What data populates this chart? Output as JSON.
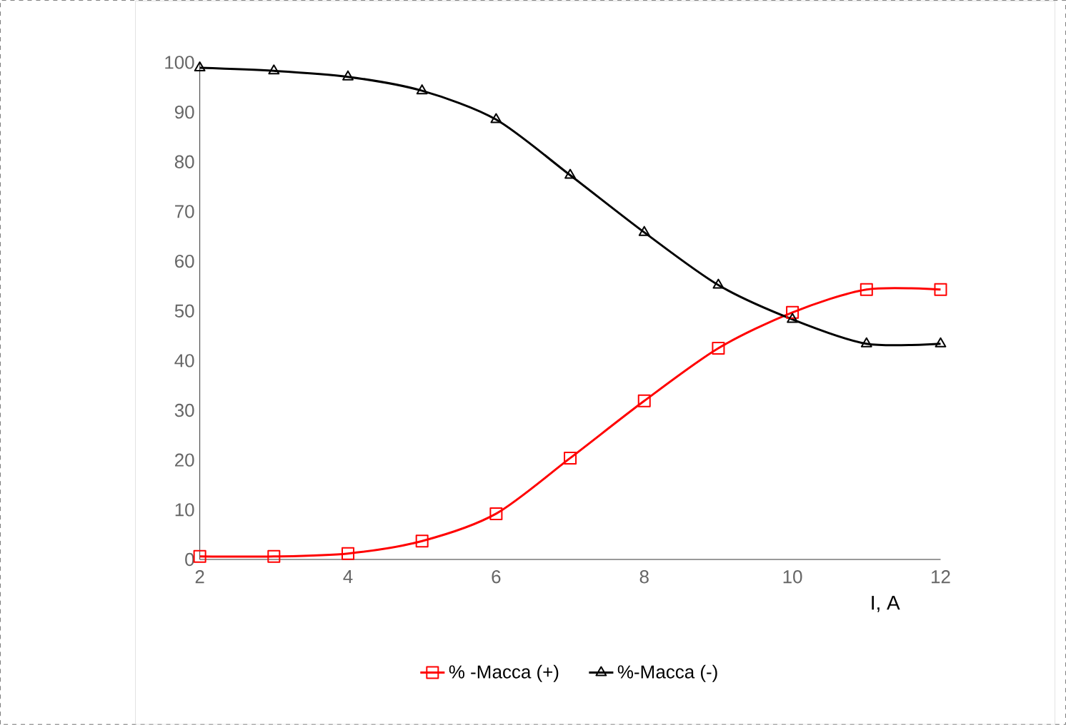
{
  "chart_data": {
    "type": "line",
    "xlabel": "I, A",
    "x": [
      2,
      3,
      4,
      5,
      6,
      7,
      8,
      9,
      10,
      11,
      12
    ],
    "series": [
      {
        "name": "% -Масса (+)",
        "color": "#ff0000",
        "marker": "square",
        "values": [
          0.6,
          0.6,
          1.2,
          3.7,
          9.2,
          20.4,
          31.9,
          42.5,
          49.7,
          54.3,
          54.3
        ]
      },
      {
        "name": "%-Масса (-)",
        "color": "#000000",
        "marker": "triangle",
        "values": [
          98.9,
          98.3,
          97.1,
          94.3,
          88.5,
          77.3,
          65.8,
          55.2,
          48.3,
          43.4,
          43.4
        ]
      }
    ],
    "xlim": [
      2,
      12
    ],
    "xticks": [
      2,
      4,
      6,
      8,
      10,
      12
    ],
    "ylim": [
      0,
      100
    ],
    "yticks": [
      0,
      10,
      20,
      30,
      40,
      50,
      60,
      70,
      80,
      90,
      100
    ],
    "grid": false,
    "legend": "bottom",
    "line_style": "solid"
  }
}
